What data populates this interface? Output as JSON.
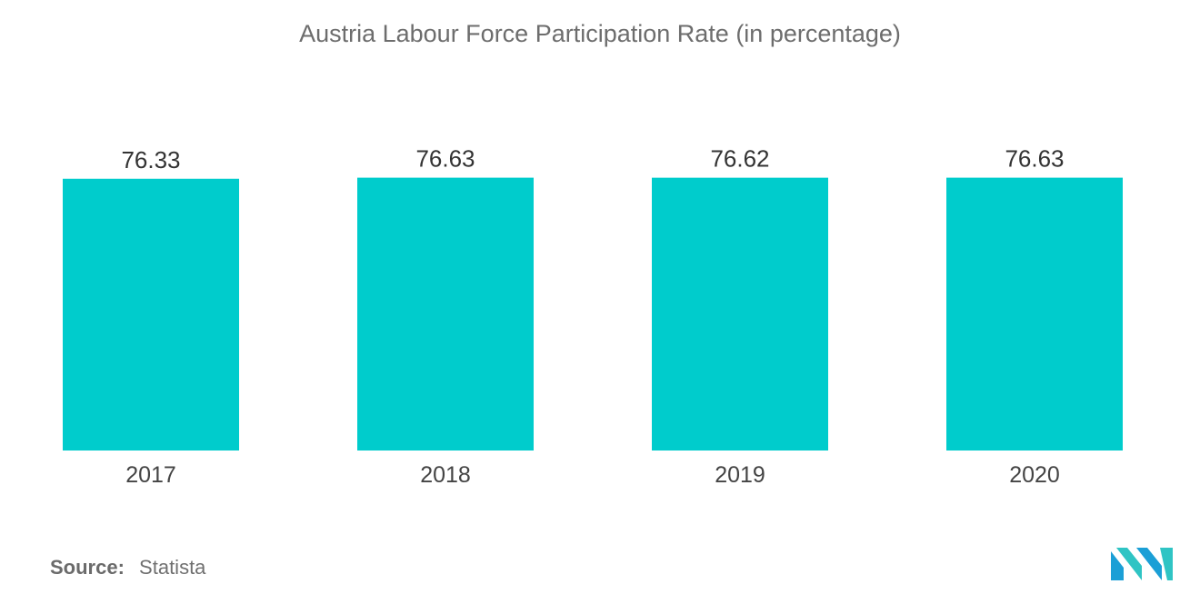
{
  "chart_data": {
    "type": "bar",
    "title": "Austria Labour Force Participation Rate (in percentage)",
    "categories": [
      "2017",
      "2018",
      "2019",
      "2020"
    ],
    "values": [
      76.33,
      76.63,
      76.62,
      76.63
    ],
    "data_labels": [
      "76.33",
      "76.63",
      "76.62",
      "76.63"
    ],
    "bar_color": "#00cccc",
    "grid": false,
    "legend": "none"
  },
  "source": {
    "label": "Source:",
    "value": "Statista"
  },
  "logo": {
    "icon": "mordor-intelligence-logo-icon",
    "colors": [
      "#1b9fd6",
      "#2fc4c4"
    ]
  }
}
